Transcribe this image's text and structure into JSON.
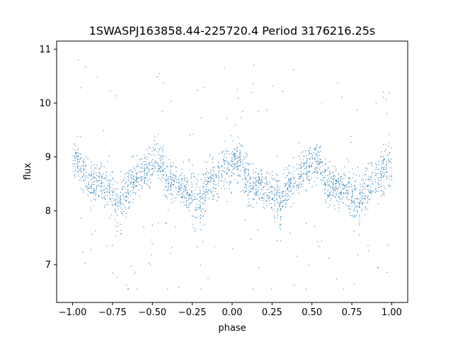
{
  "chart_data": {
    "type": "scatter",
    "title": "1SWASPJ163858.44-225720.4 Period 3176216.25s",
    "xlabel": "phase",
    "ylabel": "flux",
    "xlim": [
      -1.1,
      1.1
    ],
    "ylim": [
      6.3,
      11.15
    ],
    "xticks": [
      -1.0,
      -0.75,
      -0.5,
      -0.25,
      0.0,
      0.25,
      0.5,
      0.75,
      1.0
    ],
    "xtick_labels": [
      "−1.00",
      "−0.75",
      "−0.50",
      "−0.25",
      "0.00",
      "0.25",
      "0.50",
      "0.75",
      "1.00"
    ],
    "yticks": [
      7,
      8,
      9,
      10,
      11
    ],
    "ytick_labels": [
      "7",
      "8",
      "9",
      "10",
      "11"
    ],
    "grid": false,
    "legend": "none",
    "marker_color": "#1f77b4",
    "profile": {
      "phase": [
        0.0,
        0.05,
        0.1,
        0.15,
        0.2,
        0.25,
        0.3,
        0.35,
        0.4,
        0.45,
        0.5
      ],
      "flux_mean": [
        8.9,
        8.9,
        8.5,
        8.5,
        8.45,
        8.3,
        8.1,
        8.5,
        8.6,
        8.8,
        8.8
      ],
      "flux_spread": [
        0.3,
        0.3,
        0.35,
        0.3,
        0.3,
        0.4,
        0.4,
        0.35,
        0.35,
        0.35,
        0.4
      ]
    },
    "features": {
      "upper_outliers_max": 10.8,
      "lower_outliers_min": 6.55
    }
  }
}
